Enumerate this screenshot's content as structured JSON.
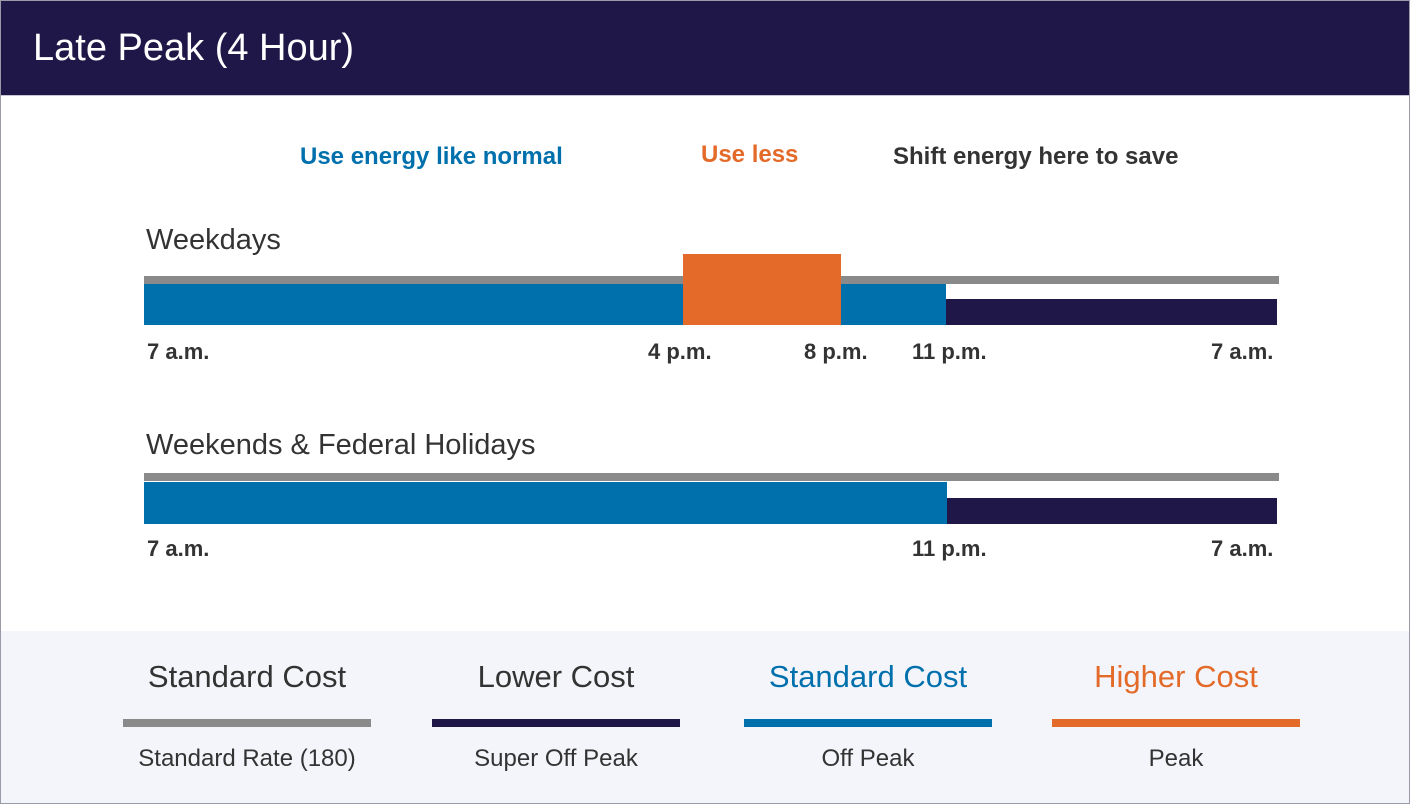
{
  "header": {
    "title": "Late Peak (4 Hour)"
  },
  "guides": [
    {
      "text": "Use energy like normal",
      "color": "#0070ad"
    },
    {
      "text": "Use less",
      "color": "#e36a28"
    },
    {
      "text": "Shift energy here to save",
      "color": "#333333"
    }
  ],
  "colors": {
    "standard_rate": "#8a8a8a",
    "super_off_peak": "#1e1747",
    "off_peak": "#0070ad",
    "peak": "#e36a28"
  },
  "schedules": [
    {
      "label": "Weekdays",
      "ticks": [
        "7 a.m.",
        "4 p.m.",
        "8 p.m.",
        "11 p.m.",
        "7 a.m."
      ]
    },
    {
      "label": "Weekends & Federal Holidays",
      "ticks": [
        "7 a.m.",
        "11 p.m.",
        "7 a.m."
      ]
    }
  ],
  "legend": [
    {
      "cost": "Standard Cost",
      "name": "Standard Rate (180)",
      "color": "#8a8a8a",
      "cost_color": "#333333"
    },
    {
      "cost": "Lower Cost",
      "name": "Super Off Peak",
      "color": "#1e1747",
      "cost_color": "#333333"
    },
    {
      "cost": "Standard Cost",
      "name": "Off Peak",
      "color": "#0070ad",
      "cost_color": "#0070ad"
    },
    {
      "cost": "Higher Cost",
      "name": "Peak",
      "color": "#e36a28",
      "cost_color": "#e36a28"
    }
  ]
}
